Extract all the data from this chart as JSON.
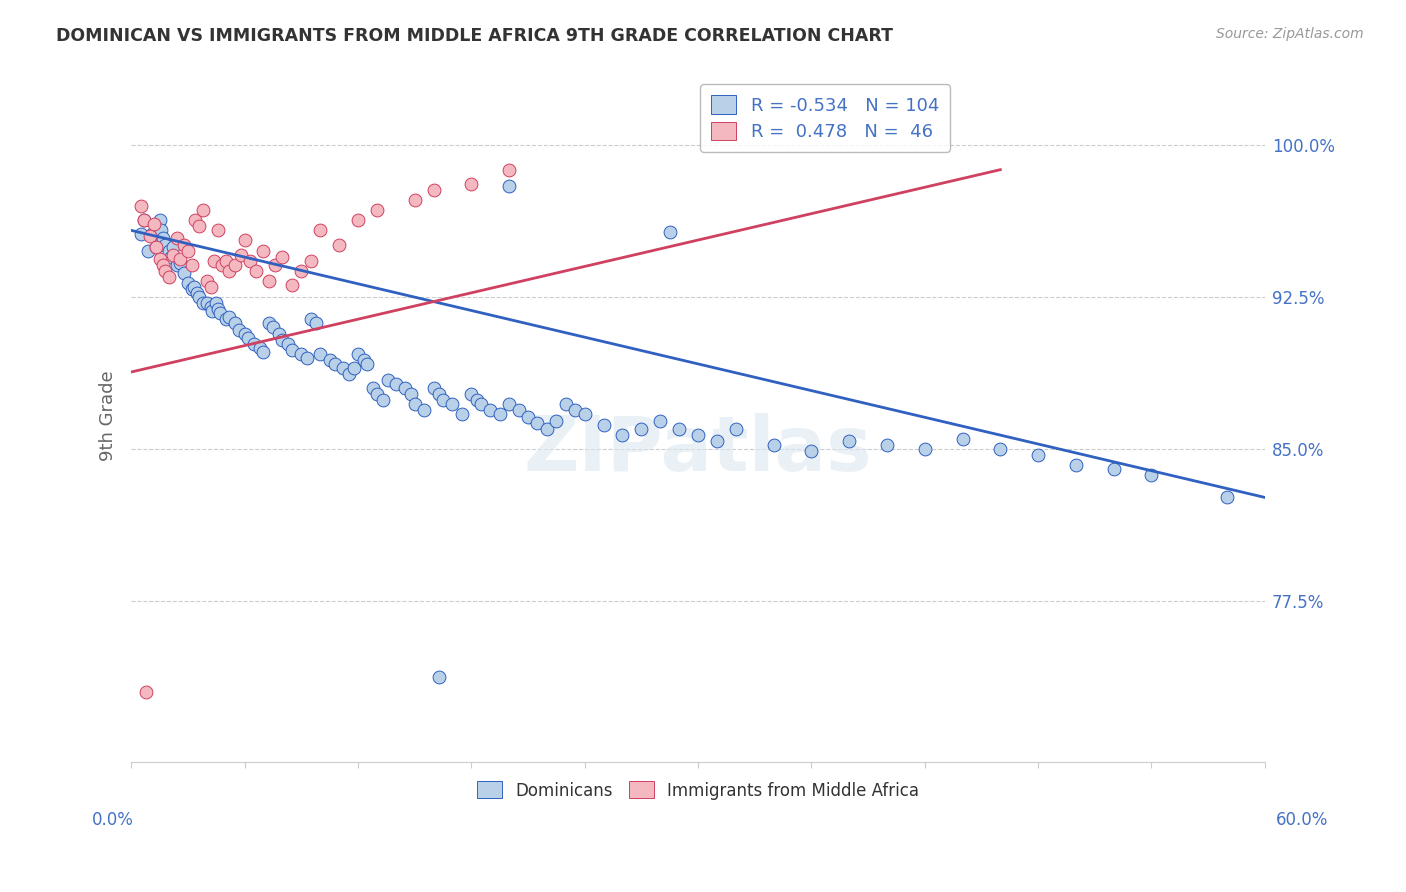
{
  "title": "DOMINICAN VS IMMIGRANTS FROM MIDDLE AFRICA 9TH GRADE CORRELATION CHART",
  "source": "Source: ZipAtlas.com",
  "ylabel": "9th Grade",
  "yticks": [
    0.775,
    0.85,
    0.925,
    1.0
  ],
  "ytick_labels": [
    "77.5%",
    "85.0%",
    "92.5%",
    "100.0%"
  ],
  "xmin": 0.0,
  "xmax": 0.6,
  "ymin": 0.695,
  "ymax": 1.038,
  "blue_color": "#b8d0e8",
  "pink_color": "#f4b8c0",
  "blue_edge_color": "#3060c0",
  "pink_edge_color": "#d04060",
  "blue_line_color": "#3060c0",
  "pink_line_color": "#d04060",
  "dominican_label": "Dominicans",
  "immigrant_label": "Immigrants from Middle Africa",
  "blue_R": -0.534,
  "blue_N": 104,
  "pink_R": 0.478,
  "pink_N": 46,
  "blue_trend": [
    0.0,
    0.958,
    0.6,
    0.826
  ],
  "pink_trend": [
    0.0,
    0.888,
    0.46,
    0.988
  ],
  "blue_dots": [
    [
      0.005,
      0.956
    ],
    [
      0.007,
      0.963
    ],
    [
      0.009,
      0.948
    ],
    [
      0.011,
      0.956
    ],
    [
      0.013,
      0.95
    ],
    [
      0.015,
      0.963
    ],
    [
      0.016,
      0.958
    ],
    [
      0.017,
      0.954
    ],
    [
      0.018,
      0.951
    ],
    [
      0.02,
      0.948
    ],
    [
      0.021,
      0.945
    ],
    [
      0.022,
      0.95
    ],
    [
      0.024,
      0.941
    ],
    [
      0.026,
      0.942
    ],
    [
      0.028,
      0.937
    ],
    [
      0.03,
      0.932
    ],
    [
      0.032,
      0.929
    ],
    [
      0.033,
      0.93
    ],
    [
      0.035,
      0.927
    ],
    [
      0.036,
      0.925
    ],
    [
      0.038,
      0.922
    ],
    [
      0.04,
      0.922
    ],
    [
      0.042,
      0.92
    ],
    [
      0.043,
      0.918
    ],
    [
      0.045,
      0.922
    ],
    [
      0.046,
      0.919
    ],
    [
      0.047,
      0.917
    ],
    [
      0.05,
      0.914
    ],
    [
      0.052,
      0.915
    ],
    [
      0.055,
      0.912
    ],
    [
      0.057,
      0.909
    ],
    [
      0.06,
      0.907
    ],
    [
      0.062,
      0.905
    ],
    [
      0.065,
      0.902
    ],
    [
      0.068,
      0.9
    ],
    [
      0.07,
      0.898
    ],
    [
      0.073,
      0.912
    ],
    [
      0.075,
      0.91
    ],
    [
      0.078,
      0.907
    ],
    [
      0.08,
      0.904
    ],
    [
      0.083,
      0.902
    ],
    [
      0.085,
      0.899
    ],
    [
      0.09,
      0.897
    ],
    [
      0.093,
      0.895
    ],
    [
      0.095,
      0.914
    ],
    [
      0.098,
      0.912
    ],
    [
      0.1,
      0.897
    ],
    [
      0.105,
      0.894
    ],
    [
      0.108,
      0.892
    ],
    [
      0.112,
      0.89
    ],
    [
      0.115,
      0.887
    ],
    [
      0.118,
      0.89
    ],
    [
      0.12,
      0.897
    ],
    [
      0.123,
      0.894
    ],
    [
      0.125,
      0.892
    ],
    [
      0.128,
      0.88
    ],
    [
      0.13,
      0.877
    ],
    [
      0.133,
      0.874
    ],
    [
      0.136,
      0.884
    ],
    [
      0.14,
      0.882
    ],
    [
      0.145,
      0.88
    ],
    [
      0.148,
      0.877
    ],
    [
      0.15,
      0.872
    ],
    [
      0.155,
      0.869
    ],
    [
      0.16,
      0.88
    ],
    [
      0.163,
      0.877
    ],
    [
      0.165,
      0.874
    ],
    [
      0.17,
      0.872
    ],
    [
      0.175,
      0.867
    ],
    [
      0.18,
      0.877
    ],
    [
      0.183,
      0.874
    ],
    [
      0.185,
      0.872
    ],
    [
      0.19,
      0.869
    ],
    [
      0.195,
      0.867
    ],
    [
      0.2,
      0.872
    ],
    [
      0.205,
      0.869
    ],
    [
      0.21,
      0.866
    ],
    [
      0.215,
      0.863
    ],
    [
      0.22,
      0.86
    ],
    [
      0.225,
      0.864
    ],
    [
      0.23,
      0.872
    ],
    [
      0.235,
      0.869
    ],
    [
      0.24,
      0.867
    ],
    [
      0.25,
      0.862
    ],
    [
      0.26,
      0.857
    ],
    [
      0.27,
      0.86
    ],
    [
      0.28,
      0.864
    ],
    [
      0.29,
      0.86
    ],
    [
      0.3,
      0.857
    ],
    [
      0.31,
      0.854
    ],
    [
      0.32,
      0.86
    ],
    [
      0.34,
      0.852
    ],
    [
      0.36,
      0.849
    ],
    [
      0.38,
      0.854
    ],
    [
      0.4,
      0.852
    ],
    [
      0.42,
      0.85
    ],
    [
      0.44,
      0.855
    ],
    [
      0.46,
      0.85
    ],
    [
      0.48,
      0.847
    ],
    [
      0.5,
      0.842
    ],
    [
      0.52,
      0.84
    ],
    [
      0.54,
      0.837
    ],
    [
      0.58,
      0.826
    ],
    [
      0.2,
      0.98
    ],
    [
      0.285,
      0.957
    ],
    [
      0.163,
      0.737
    ]
  ],
  "pink_dots": [
    [
      0.005,
      0.97
    ],
    [
      0.007,
      0.963
    ],
    [
      0.01,
      0.955
    ],
    [
      0.012,
      0.961
    ],
    [
      0.013,
      0.95
    ],
    [
      0.015,
      0.944
    ],
    [
      0.017,
      0.941
    ],
    [
      0.018,
      0.938
    ],
    [
      0.02,
      0.935
    ],
    [
      0.022,
      0.946
    ],
    [
      0.024,
      0.954
    ],
    [
      0.026,
      0.944
    ],
    [
      0.028,
      0.951
    ],
    [
      0.03,
      0.948
    ],
    [
      0.032,
      0.941
    ],
    [
      0.034,
      0.963
    ],
    [
      0.036,
      0.96
    ],
    [
      0.038,
      0.968
    ],
    [
      0.04,
      0.933
    ],
    [
      0.042,
      0.93
    ],
    [
      0.044,
      0.943
    ],
    [
      0.046,
      0.958
    ],
    [
      0.048,
      0.941
    ],
    [
      0.05,
      0.943
    ],
    [
      0.052,
      0.938
    ],
    [
      0.055,
      0.941
    ],
    [
      0.058,
      0.946
    ],
    [
      0.06,
      0.953
    ],
    [
      0.063,
      0.943
    ],
    [
      0.066,
      0.938
    ],
    [
      0.07,
      0.948
    ],
    [
      0.073,
      0.933
    ],
    [
      0.076,
      0.941
    ],
    [
      0.08,
      0.945
    ],
    [
      0.085,
      0.931
    ],
    [
      0.09,
      0.938
    ],
    [
      0.095,
      0.943
    ],
    [
      0.1,
      0.958
    ],
    [
      0.11,
      0.951
    ],
    [
      0.12,
      0.963
    ],
    [
      0.13,
      0.968
    ],
    [
      0.15,
      0.973
    ],
    [
      0.16,
      0.978
    ],
    [
      0.18,
      0.981
    ],
    [
      0.2,
      0.988
    ],
    [
      0.008,
      0.73
    ]
  ]
}
